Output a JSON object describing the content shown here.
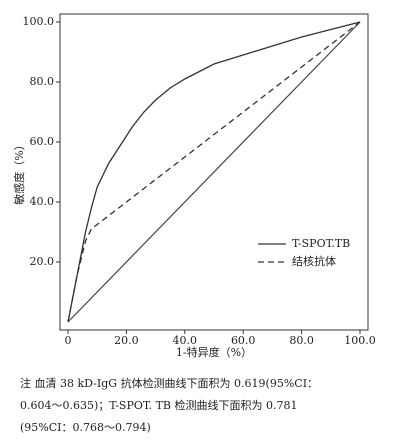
{
  "chart_data": {
    "type": "line",
    "xlabel": "1-特异度（%）",
    "ylabel": "敏感度（%）",
    "xlim": [
      0,
      100
    ],
    "ylim": [
      0,
      100
    ],
    "xticks": [
      0,
      {
        "value": 20,
        "label": "20.0"
      },
      {
        "value": 40,
        "label": "40.0"
      },
      {
        "value": 60,
        "label": "60.0"
      },
      {
        "value": 80,
        "label": "80.0"
      },
      {
        "value": 100,
        "label": "100.0"
      }
    ],
    "yticks": [
      {
        "value": 20,
        "label": "20.0"
      },
      {
        "value": 40,
        "label": "40.0"
      },
      {
        "value": 60,
        "label": "60.0"
      },
      {
        "value": 80,
        "label": "80.0"
      },
      {
        "value": 100,
        "label": "100.0"
      }
    ],
    "series": [
      {
        "name": "T-SPOT.TB",
        "color": "#333333",
        "dash": false,
        "x": [
          0,
          2,
          4,
          6,
          8,
          10,
          14,
          18,
          22,
          26,
          30,
          35,
          40,
          50,
          60,
          70,
          80,
          90,
          100
        ],
        "values": [
          0,
          10,
          20,
          30,
          38,
          45,
          53,
          59,
          65,
          70,
          74,
          78,
          81,
          86,
          89,
          92,
          95,
          97.5,
          100
        ]
      },
      {
        "name": "结核抗体",
        "color": "#333333",
        "dash": true,
        "x": [
          0,
          3,
          6,
          8,
          100
        ],
        "values": [
          0,
          15,
          27,
          31,
          100
        ]
      }
    ],
    "legend": "lower-right",
    "notes": [
      "注 血清 38 kD-IgG 抗体检测曲线下面积为 0.619(95%CI：",
      "0.604～0.635)；T-SPOT. TB 检测曲线下面积为 0.781",
      "(95%CI：0.768～0.794)"
    ]
  }
}
